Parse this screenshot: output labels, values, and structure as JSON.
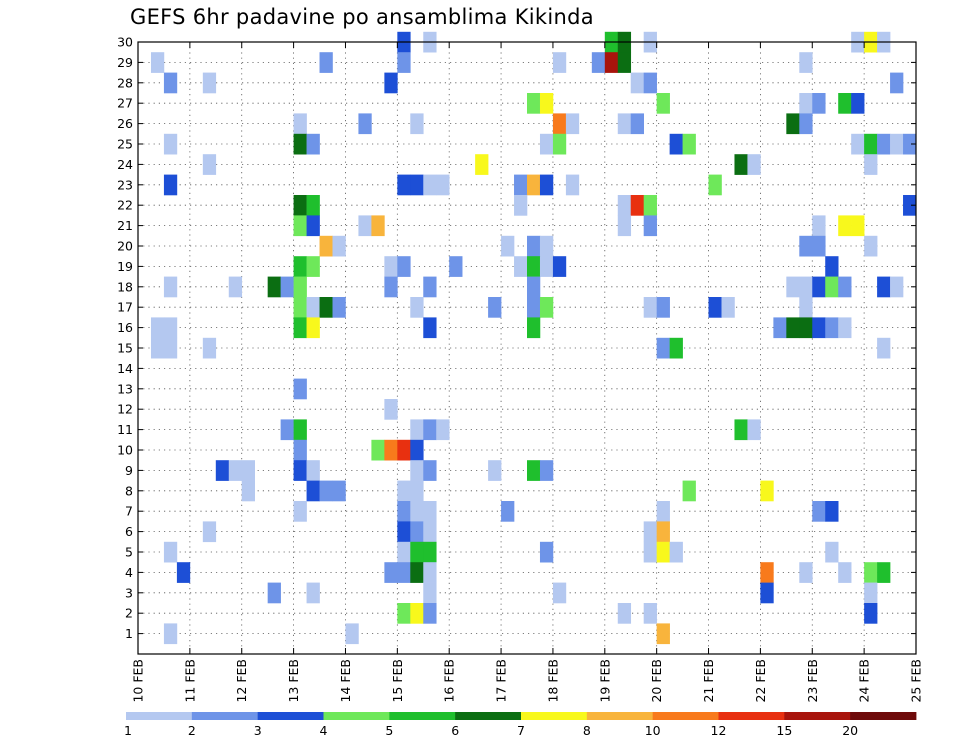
{
  "chart_data": {
    "type": "heatmap",
    "title": "GEFS 6hr padavine po ansamblima Kikinda",
    "x_tick_labels": [
      "10 FEB",
      "11 FEB",
      "12 FEB",
      "13 FEB",
      "14 FEB",
      "15 FEB",
      "16 FEB",
      "17 FEB",
      "18 FEB",
      "19 FEB",
      "20 FEB",
      "21 FEB",
      "22 FEB",
      "23 FEB",
      "24 FEB",
      "25 FEB"
    ],
    "y_tick_labels": [
      "1",
      "2",
      "3",
      "4",
      "5",
      "6",
      "7",
      "8",
      "9",
      "10",
      "11",
      "12",
      "13",
      "14",
      "15",
      "16",
      "17",
      "18",
      "19",
      "20",
      "21",
      "22",
      "23",
      "24",
      "25",
      "26",
      "27",
      "28",
      "29",
      "30"
    ],
    "xlim_days": [
      10,
      25
    ],
    "ylim": [
      0,
      30
    ],
    "time_step_hours": 6,
    "grid": "dotted",
    "legend": {
      "placement": "bottom",
      "labels": [
        "1",
        "2",
        "3",
        "4",
        "5",
        "6",
        "7",
        "8",
        "10",
        "12",
        "15",
        "20"
      ],
      "colors": [
        "#b4c8f0",
        "#6e94e8",
        "#1d4fd6",
        "#6ee85a",
        "#1fbf2d",
        "#0b6e12",
        "#f8f81c",
        "#f8b43c",
        "#f87a1c",
        "#e83010",
        "#a8140c",
        "#6e0a0a"
      ]
    },
    "cells": [
      {
        "member": 30,
        "day": 15.0,
        "v": 3.5
      },
      {
        "member": 30,
        "day": 15.5,
        "v": 1.5
      },
      {
        "member": 30,
        "day": 19.0,
        "v": 5.5
      },
      {
        "member": 30,
        "day": 19.25,
        "v": 6.5
      },
      {
        "member": 30,
        "day": 19.75,
        "v": 1.5
      },
      {
        "member": 30,
        "day": 23.75,
        "v": 1.5
      },
      {
        "member": 30,
        "day": 24.0,
        "v": 7.5
      },
      {
        "member": 30,
        "day": 24.25,
        "v": 1.5
      },
      {
        "member": 29,
        "day": 10.25,
        "v": 1.5
      },
      {
        "member": 29,
        "day": 13.5,
        "v": 2.5
      },
      {
        "member": 29,
        "day": 15.0,
        "v": 2.5
      },
      {
        "member": 29,
        "day": 18.0,
        "v": 1.5
      },
      {
        "member": 29,
        "day": 18.75,
        "v": 2.5
      },
      {
        "member": 29,
        "day": 19.0,
        "v": 16
      },
      {
        "member": 29,
        "day": 19.25,
        "v": 6.5
      },
      {
        "member": 29,
        "day": 22.75,
        "v": 1.5
      },
      {
        "member": 28,
        "day": 10.5,
        "v": 2.5
      },
      {
        "member": 28,
        "day": 11.25,
        "v": 1.5
      },
      {
        "member": 28,
        "day": 14.75,
        "v": 3.5
      },
      {
        "member": 28,
        "day": 19.5,
        "v": 1.5
      },
      {
        "member": 28,
        "day": 19.75,
        "v": 2.5
      },
      {
        "member": 28,
        "day": 24.5,
        "v": 2.5
      },
      {
        "member": 27,
        "day": 17.5,
        "v": 4.5
      },
      {
        "member": 27,
        "day": 17.75,
        "v": 7.5
      },
      {
        "member": 27,
        "day": 20.0,
        "v": 4.5
      },
      {
        "member": 27,
        "day": 22.75,
        "v": 1.5
      },
      {
        "member": 27,
        "day": 23.0,
        "v": 2.5
      },
      {
        "member": 27,
        "day": 23.5,
        "v": 5.5
      },
      {
        "member": 27,
        "day": 23.75,
        "v": 3.5
      },
      {
        "member": 26,
        "day": 13.0,
        "v": 1.5
      },
      {
        "member": 26,
        "day": 14.25,
        "v": 2.5
      },
      {
        "member": 26,
        "day": 15.25,
        "v": 1.5
      },
      {
        "member": 26,
        "day": 18.0,
        "v": 11
      },
      {
        "member": 26,
        "day": 18.25,
        "v": 1.5
      },
      {
        "member": 26,
        "day": 19.25,
        "v": 1.5
      },
      {
        "member": 26,
        "day": 19.5,
        "v": 2.5
      },
      {
        "member": 26,
        "day": 22.5,
        "v": 6.5
      },
      {
        "member": 26,
        "day": 22.75,
        "v": 2.5
      },
      {
        "member": 25,
        "day": 10.5,
        "v": 1.5
      },
      {
        "member": 25,
        "day": 13.0,
        "v": 6.5
      },
      {
        "member": 25,
        "day": 13.25,
        "v": 2.5
      },
      {
        "member": 25,
        "day": 17.75,
        "v": 1.5
      },
      {
        "member": 25,
        "day": 18.0,
        "v": 4.5
      },
      {
        "member": 25,
        "day": 20.25,
        "v": 3.5
      },
      {
        "member": 25,
        "day": 20.5,
        "v": 4.5
      },
      {
        "member": 25,
        "day": 23.75,
        "v": 1.5
      },
      {
        "member": 25,
        "day": 24.0,
        "v": 5.5
      },
      {
        "member": 25,
        "day": 24.25,
        "v": 2.5
      },
      {
        "member": 25,
        "day": 24.5,
        "v": 1.5
      },
      {
        "member": 25,
        "day": 24.75,
        "v": 2.5
      },
      {
        "member": 24,
        "day": 11.25,
        "v": 1.5
      },
      {
        "member": 24,
        "day": 16.5,
        "v": 7.5
      },
      {
        "member": 24,
        "day": 21.5,
        "v": 6.5
      },
      {
        "member": 24,
        "day": 21.75,
        "v": 1.5
      },
      {
        "member": 24,
        "day": 24.0,
        "v": 1.5
      },
      {
        "member": 23,
        "day": 10.5,
        "v": 3.5
      },
      {
        "member": 23,
        "day": 15.0,
        "v": 3.5
      },
      {
        "member": 23,
        "day": 15.25,
        "v": 3.5
      },
      {
        "member": 23,
        "day": 15.5,
        "v": 1.5
      },
      {
        "member": 23,
        "day": 15.75,
        "v": 1.5
      },
      {
        "member": 23,
        "day": 17.25,
        "v": 2.5
      },
      {
        "member": 23,
        "day": 17.5,
        "v": 9
      },
      {
        "member": 23,
        "day": 17.75,
        "v": 3.5
      },
      {
        "member": 23,
        "day": 18.25,
        "v": 1.5
      },
      {
        "member": 23,
        "day": 21.0,
        "v": 4.5
      },
      {
        "member": 22,
        "day": 13.0,
        "v": 6.5
      },
      {
        "member": 22,
        "day": 13.25,
        "v": 5.5
      },
      {
        "member": 22,
        "day": 17.25,
        "v": 1.5
      },
      {
        "member": 22,
        "day": 19.25,
        "v": 1.5
      },
      {
        "member": 22,
        "day": 19.5,
        "v": 13
      },
      {
        "member": 22,
        "day": 19.75,
        "v": 4.5
      },
      {
        "member": 22,
        "day": 24.75,
        "v": 3.5
      },
      {
        "member": 21,
        "day": 13.0,
        "v": 4.5
      },
      {
        "member": 21,
        "day": 13.25,
        "v": 3.5
      },
      {
        "member": 21,
        "day": 14.25,
        "v": 1.5
      },
      {
        "member": 21,
        "day": 14.5,
        "v": 9
      },
      {
        "member": 21,
        "day": 19.25,
        "v": 1.5
      },
      {
        "member": 21,
        "day": 19.75,
        "v": 2.5
      },
      {
        "member": 21,
        "day": 23.0,
        "v": 1.5
      },
      {
        "member": 21,
        "day": 23.5,
        "v": 7.5
      },
      {
        "member": 21,
        "day": 23.75,
        "v": 7.5
      },
      {
        "member": 20,
        "day": 13.5,
        "v": 9
      },
      {
        "member": 20,
        "day": 13.75,
        "v": 1.5
      },
      {
        "member": 20,
        "day": 17.0,
        "v": 1.5
      },
      {
        "member": 20,
        "day": 17.5,
        "v": 2.5
      },
      {
        "member": 20,
        "day": 17.75,
        "v": 1.5
      },
      {
        "member": 20,
        "day": 22.75,
        "v": 2.5
      },
      {
        "member": 20,
        "day": 23.0,
        "v": 2.5
      },
      {
        "member": 20,
        "day": 24.0,
        "v": 1.5
      },
      {
        "member": 19,
        "day": 13.0,
        "v": 5.5
      },
      {
        "member": 19,
        "day": 13.25,
        "v": 4.5
      },
      {
        "member": 19,
        "day": 14.75,
        "v": 1.5
      },
      {
        "member": 19,
        "day": 15.0,
        "v": 2.5
      },
      {
        "member": 19,
        "day": 16.0,
        "v": 2.5
      },
      {
        "member": 19,
        "day": 17.25,
        "v": 1.5
      },
      {
        "member": 19,
        "day": 17.5,
        "v": 5.5
      },
      {
        "member": 19,
        "day": 17.75,
        "v": 1.5
      },
      {
        "member": 19,
        "day": 18.0,
        "v": 3.5
      },
      {
        "member": 19,
        "day": 23.25,
        "v": 3.5
      },
      {
        "member": 18,
        "day": 10.5,
        "v": 1.5
      },
      {
        "member": 18,
        "day": 11.75,
        "v": 1.5
      },
      {
        "member": 18,
        "day": 12.5,
        "v": 6.5
      },
      {
        "member": 18,
        "day": 12.75,
        "v": 2.5
      },
      {
        "member": 18,
        "day": 13.0,
        "v": 4.5
      },
      {
        "member": 18,
        "day": 14.75,
        "v": 2.5
      },
      {
        "member": 18,
        "day": 15.5,
        "v": 2.5
      },
      {
        "member": 18,
        "day": 17.5,
        "v": 2.5
      },
      {
        "member": 18,
        "day": 22.5,
        "v": 1.5
      },
      {
        "member": 18,
        "day": 22.75,
        "v": 1.5
      },
      {
        "member": 18,
        "day": 23.0,
        "v": 3.5
      },
      {
        "member": 18,
        "day": 23.25,
        "v": 4.5
      },
      {
        "member": 18,
        "day": 23.5,
        "v": 2.5
      },
      {
        "member": 18,
        "day": 24.25,
        "v": 3.5
      },
      {
        "member": 18,
        "day": 24.5,
        "v": 1.5
      },
      {
        "member": 17,
        "day": 13.0,
        "v": 4.5
      },
      {
        "member": 17,
        "day": 13.25,
        "v": 1.5
      },
      {
        "member": 17,
        "day": 13.5,
        "v": 6.5
      },
      {
        "member": 17,
        "day": 13.75,
        "v": 2.5
      },
      {
        "member": 17,
        "day": 15.25,
        "v": 1.5
      },
      {
        "member": 17,
        "day": 16.75,
        "v": 2.5
      },
      {
        "member": 17,
        "day": 17.5,
        "v": 2.5
      },
      {
        "member": 17,
        "day": 17.75,
        "v": 4.5
      },
      {
        "member": 17,
        "day": 19.75,
        "v": 1.5
      },
      {
        "member": 17,
        "day": 20.0,
        "v": 2.5
      },
      {
        "member": 17,
        "day": 21.0,
        "v": 3.5
      },
      {
        "member": 17,
        "day": 21.25,
        "v": 1.5
      },
      {
        "member": 17,
        "day": 22.75,
        "v": 1.5
      },
      {
        "member": 16,
        "day": 10.25,
        "v": 1.5
      },
      {
        "member": 16,
        "day": 10.5,
        "v": 1.5
      },
      {
        "member": 16,
        "day": 13.0,
        "v": 5.5
      },
      {
        "member": 16,
        "day": 13.25,
        "v": 7.5
      },
      {
        "member": 16,
        "day": 15.5,
        "v": 3.5
      },
      {
        "member": 16,
        "day": 17.5,
        "v": 5.5
      },
      {
        "member": 16,
        "day": 22.25,
        "v": 2.5
      },
      {
        "member": 16,
        "day": 22.5,
        "v": 6.5
      },
      {
        "member": 16,
        "day": 22.75,
        "v": 6.5
      },
      {
        "member": 16,
        "day": 23.0,
        "v": 3.5
      },
      {
        "member": 16,
        "day": 23.25,
        "v": 2.5
      },
      {
        "member": 16,
        "day": 23.5,
        "v": 1.5
      },
      {
        "member": 15,
        "day": 10.25,
        "v": 1.5
      },
      {
        "member": 15,
        "day": 10.5,
        "v": 1.5
      },
      {
        "member": 15,
        "day": 11.25,
        "v": 1.5
      },
      {
        "member": 15,
        "day": 20.0,
        "v": 2.5
      },
      {
        "member": 15,
        "day": 20.25,
        "v": 5.5
      },
      {
        "member": 15,
        "day": 24.25,
        "v": 1.5
      },
      {
        "member": 13,
        "day": 13.0,
        "v": 2.5
      },
      {
        "member": 12,
        "day": 14.75,
        "v": 1.5
      },
      {
        "member": 11,
        "day": 12.75,
        "v": 2.5
      },
      {
        "member": 11,
        "day": 13.0,
        "v": 5.5
      },
      {
        "member": 11,
        "day": 15.25,
        "v": 1.5
      },
      {
        "member": 11,
        "day": 15.5,
        "v": 2.5
      },
      {
        "member": 11,
        "day": 15.75,
        "v": 1.5
      },
      {
        "member": 11,
        "day": 21.5,
        "v": 5.5
      },
      {
        "member": 11,
        "day": 21.75,
        "v": 1.5
      },
      {
        "member": 10,
        "day": 13.0,
        "v": 2.5
      },
      {
        "member": 10,
        "day": 14.5,
        "v": 4.5
      },
      {
        "member": 10,
        "day": 14.75,
        "v": 11
      },
      {
        "member": 10,
        "day": 15.0,
        "v": 13
      },
      {
        "member": 10,
        "day": 15.25,
        "v": 3.5
      },
      {
        "member": 9,
        "day": 11.5,
        "v": 3.5
      },
      {
        "member": 9,
        "day": 11.75,
        "v": 1.5
      },
      {
        "member": 9,
        "day": 12.0,
        "v": 1.5
      },
      {
        "member": 9,
        "day": 13.0,
        "v": 3.5
      },
      {
        "member": 9,
        "day": 13.25,
        "v": 1.5
      },
      {
        "member": 9,
        "day": 15.25,
        "v": 1.5
      },
      {
        "member": 9,
        "day": 15.5,
        "v": 2.5
      },
      {
        "member": 9,
        "day": 16.75,
        "v": 1.5
      },
      {
        "member": 9,
        "day": 17.5,
        "v": 5.5
      },
      {
        "member": 9,
        "day": 17.75,
        "v": 2.5
      },
      {
        "member": 8,
        "day": 12.0,
        "v": 1.5
      },
      {
        "member": 8,
        "day": 13.25,
        "v": 3.5
      },
      {
        "member": 8,
        "day": 13.5,
        "v": 2.5
      },
      {
        "member": 8,
        "day": 13.75,
        "v": 2.5
      },
      {
        "member": 8,
        "day": 15.0,
        "v": 1.5
      },
      {
        "member": 8,
        "day": 15.25,
        "v": 1.5
      },
      {
        "member": 8,
        "day": 20.5,
        "v": 4.5
      },
      {
        "member": 8,
        "day": 22.0,
        "v": 7.5
      },
      {
        "member": 7,
        "day": 13.0,
        "v": 1.5
      },
      {
        "member": 7,
        "day": 15.0,
        "v": 2.5
      },
      {
        "member": 7,
        "day": 15.25,
        "v": 1.5
      },
      {
        "member": 7,
        "day": 15.5,
        "v": 1.5
      },
      {
        "member": 7,
        "day": 17.0,
        "v": 2.5
      },
      {
        "member": 7,
        "day": 20.0,
        "v": 1.5
      },
      {
        "member": 7,
        "day": 23.0,
        "v": 2.5
      },
      {
        "member": 7,
        "day": 23.25,
        "v": 3.5
      },
      {
        "member": 6,
        "day": 11.25,
        "v": 1.5
      },
      {
        "member": 6,
        "day": 15.0,
        "v": 3.5
      },
      {
        "member": 6,
        "day": 15.25,
        "v": 2.5
      },
      {
        "member": 6,
        "day": 15.5,
        "v": 1.5
      },
      {
        "member": 6,
        "day": 19.75,
        "v": 1.5
      },
      {
        "member": 6,
        "day": 20.0,
        "v": 9
      },
      {
        "member": 5,
        "day": 10.5,
        "v": 1.5
      },
      {
        "member": 5,
        "day": 15.0,
        "v": 1.5
      },
      {
        "member": 5,
        "day": 15.25,
        "v": 5.5
      },
      {
        "member": 5,
        "day": 15.5,
        "v": 5.5
      },
      {
        "member": 5,
        "day": 17.75,
        "v": 2.5
      },
      {
        "member": 5,
        "day": 19.75,
        "v": 1.5
      },
      {
        "member": 5,
        "day": 20.0,
        "v": 7.5
      },
      {
        "member": 5,
        "day": 20.25,
        "v": 1.5
      },
      {
        "member": 5,
        "day": 23.25,
        "v": 1.5
      },
      {
        "member": 4,
        "day": 10.75,
        "v": 3.5
      },
      {
        "member": 4,
        "day": 14.75,
        "v": 2.5
      },
      {
        "member": 4,
        "day": 15.0,
        "v": 2.5
      },
      {
        "member": 4,
        "day": 15.25,
        "v": 6.5
      },
      {
        "member": 4,
        "day": 15.5,
        "v": 1.5
      },
      {
        "member": 4,
        "day": 22.0,
        "v": 11
      },
      {
        "member": 4,
        "day": 22.75,
        "v": 1.5
      },
      {
        "member": 4,
        "day": 23.5,
        "v": 1.5
      },
      {
        "member": 4,
        "day": 24.0,
        "v": 4.5
      },
      {
        "member": 4,
        "day": 24.25,
        "v": 5.5
      },
      {
        "member": 3,
        "day": 12.5,
        "v": 2.5
      },
      {
        "member": 3,
        "day": 13.25,
        "v": 1.5
      },
      {
        "member": 3,
        "day": 15.5,
        "v": 1.5
      },
      {
        "member": 3,
        "day": 18.0,
        "v": 1.5
      },
      {
        "member": 3,
        "day": 22.0,
        "v": 3.5
      },
      {
        "member": 3,
        "day": 24.0,
        "v": 1.5
      },
      {
        "member": 2,
        "day": 15.0,
        "v": 4.5
      },
      {
        "member": 2,
        "day": 15.25,
        "v": 7.5
      },
      {
        "member": 2,
        "day": 15.5,
        "v": 2.5
      },
      {
        "member": 2,
        "day": 19.25,
        "v": 1.5
      },
      {
        "member": 2,
        "day": 19.75,
        "v": 1.5
      },
      {
        "member": 2,
        "day": 24.0,
        "v": 3.5
      },
      {
        "member": 1,
        "day": 10.5,
        "v": 1.5
      },
      {
        "member": 1,
        "day": 14.0,
        "v": 1.5
      },
      {
        "member": 1,
        "day": 20.0,
        "v": 9
      }
    ]
  }
}
